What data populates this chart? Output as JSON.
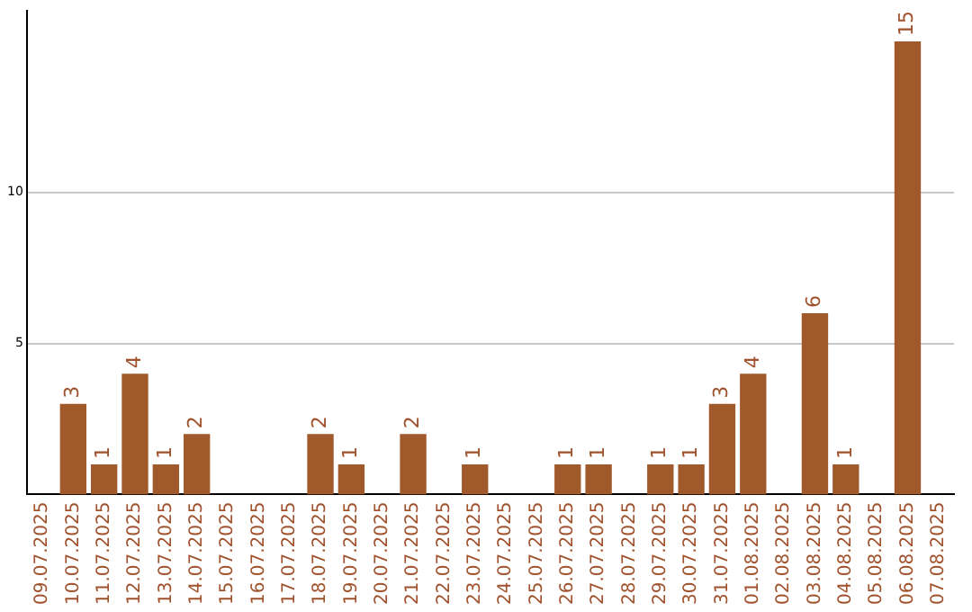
{
  "chart_data": {
    "type": "bar",
    "categories": [
      "09.07.2025",
      "10.07.2025",
      "11.07.2025",
      "12.07.2025",
      "13.07.2025",
      "14.07.2025",
      "15.07.2025",
      "16.07.2025",
      "17.07.2025",
      "18.07.2025",
      "19.07.2025",
      "20.07.2025",
      "21.07.2025",
      "22.07.2025",
      "23.07.2025",
      "24.07.2025",
      "25.07.2025",
      "26.07.2025",
      "27.07.2025",
      "28.07.2025",
      "29.07.2025",
      "30.07.2025",
      "31.07.2025",
      "01.08.2025",
      "02.08.2025",
      "03.08.2025",
      "04.08.2025",
      "05.08.2025",
      "06.08.2025",
      "07.08.2025"
    ],
    "values": [
      0,
      3,
      1,
      4,
      1,
      2,
      0,
      0,
      0,
      2,
      1,
      0,
      2,
      0,
      1,
      0,
      0,
      1,
      1,
      0,
      1,
      1,
      3,
      4,
      0,
      6,
      1,
      0,
      15,
      0
    ],
    "value_labels": [
      null,
      "3",
      "1",
      "4",
      "1",
      "2",
      null,
      null,
      null,
      "2",
      "1",
      null,
      "2",
      null,
      "1",
      null,
      null,
      "1",
      "1",
      null,
      "1",
      "1",
      "3",
      "4",
      null,
      "6",
      "1",
      null,
      "15",
      null
    ],
    "color": "#a0592b",
    "ylim": [
      0,
      16
    ],
    "yticks": [
      5,
      10
    ],
    "grid": "y",
    "legend": false
  }
}
